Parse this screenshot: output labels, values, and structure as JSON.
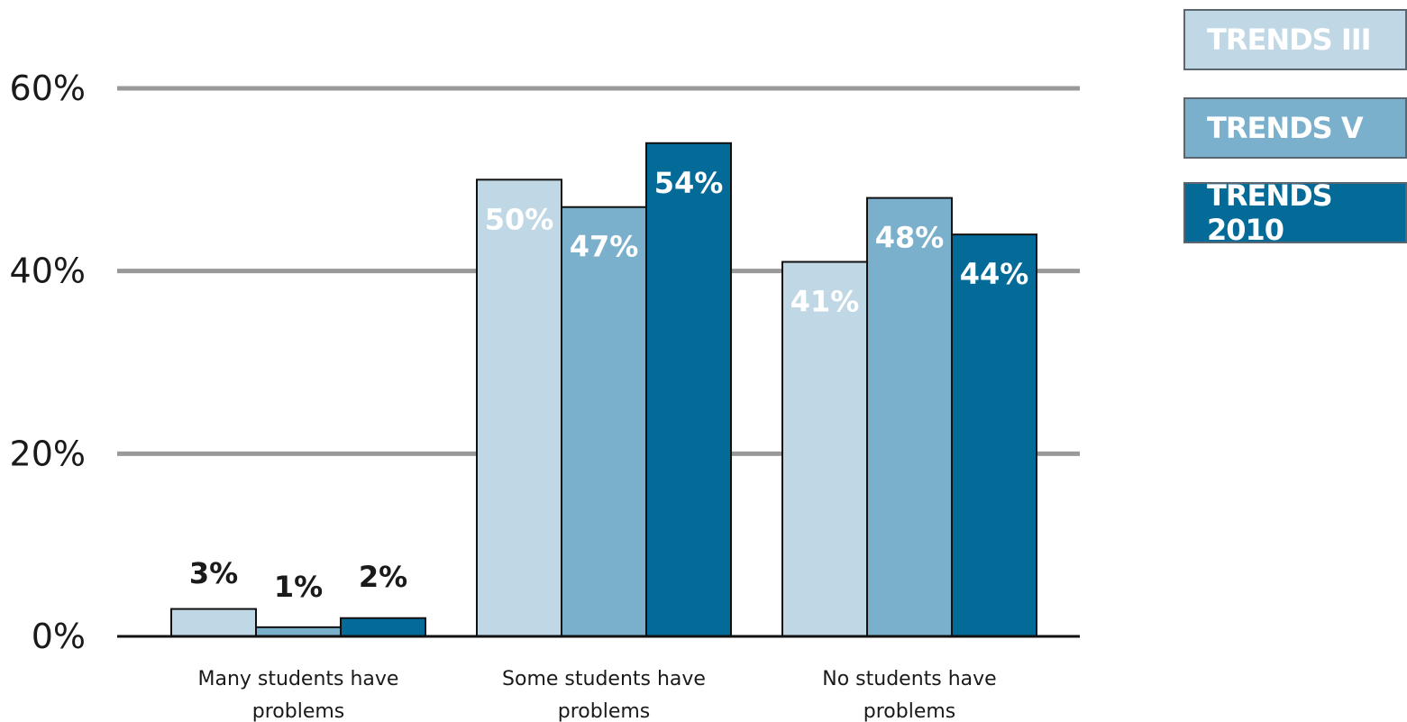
{
  "chart_data": {
    "type": "bar",
    "categories": [
      "Many students have problems",
      "Some students have problems",
      "No students have problems"
    ],
    "category_lines": [
      [
        "Many students have",
        "problems"
      ],
      [
        "Some students have",
        "problems"
      ],
      [
        "No students have",
        "problems"
      ]
    ],
    "series": [
      {
        "name": "TRENDS III",
        "values": [
          3,
          50,
          41
        ],
        "labels": [
          "3%",
          "50%",
          "41%"
        ],
        "color": "#c0d8e5"
      },
      {
        "name": "TRENDS V",
        "values": [
          1,
          47,
          48
        ],
        "labels": [
          "1%",
          "47%",
          "48%"
        ],
        "color": "#7bb0cc"
      },
      {
        "name": "TRENDS 2010",
        "values": [
          2,
          54,
          44
        ],
        "labels": [
          "2%",
          "54%",
          "44%"
        ],
        "color": "#046b99"
      }
    ],
    "y_ticks": [
      0,
      20,
      40,
      60
    ],
    "y_tick_labels": [
      "0%",
      "20%",
      "40%",
      "60%"
    ],
    "ylim": [
      0,
      60
    ],
    "grid": true,
    "legend_position": "top-right",
    "title": "",
    "xlabel": "",
    "ylabel": ""
  }
}
